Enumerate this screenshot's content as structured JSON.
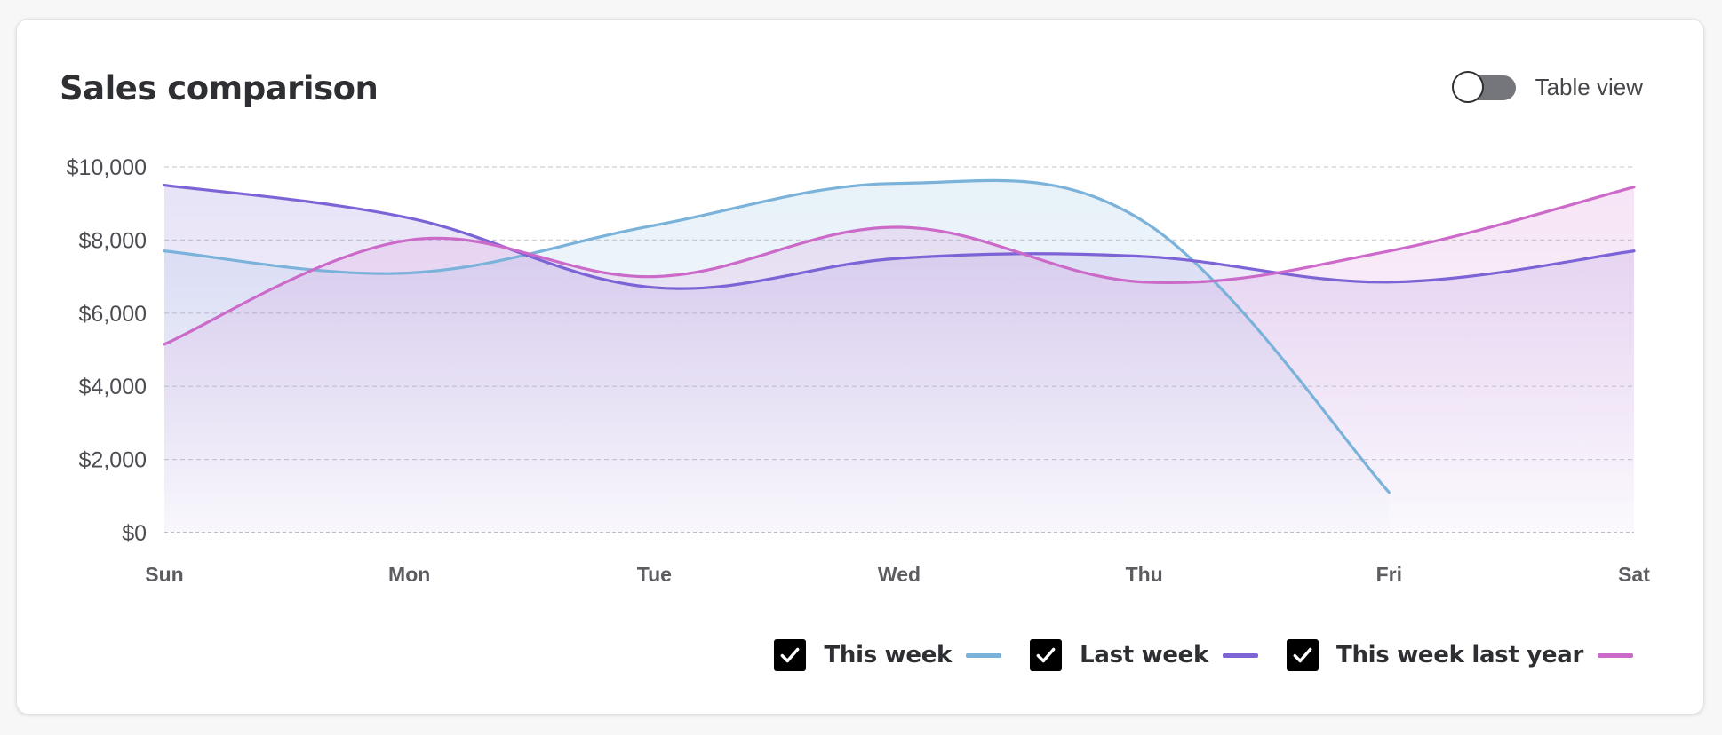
{
  "card": {
    "title": "Sales comparison",
    "toggle_label": "Table view",
    "toggle_on": false
  },
  "colors": {
    "this_week": "#7ab2da",
    "last_week": "#7c63d6",
    "this_week_last_year": "#cc6ac9",
    "grid": "#cfd0d4",
    "axis": "#9a9ba0"
  },
  "chart_data": {
    "type": "line",
    "title": "Sales comparison",
    "categories": [
      "Sun",
      "Mon",
      "Tue",
      "Wed",
      "Thu",
      "Fri",
      "Sat"
    ],
    "y_ticks": [
      "$0",
      "$2,000",
      "$4,000",
      "$6,000",
      "$8,000",
      "$10,000"
    ],
    "y_tick_values": [
      0,
      2000,
      4000,
      6000,
      8000,
      10000
    ],
    "ylim": [
      0,
      10000
    ],
    "grid": true,
    "legend_position": "bottom-right",
    "series": [
      {
        "name": "This week",
        "key": "this_week",
        "color": "#7ab2da",
        "values": [
          7700,
          7100,
          8400,
          9550,
          8500,
          1100,
          null
        ],
        "checked": true
      },
      {
        "name": "Last week",
        "key": "last_week",
        "color": "#7c63d6",
        "values": [
          9500,
          8600,
          6700,
          7500,
          7550,
          6850,
          7700
        ],
        "checked": true
      },
      {
        "name": "This week last year",
        "key": "this_week_last_year",
        "color": "#cc6ac9",
        "values": [
          5150,
          8000,
          7000,
          8350,
          6850,
          7700,
          9450
        ],
        "checked": true
      }
    ]
  }
}
